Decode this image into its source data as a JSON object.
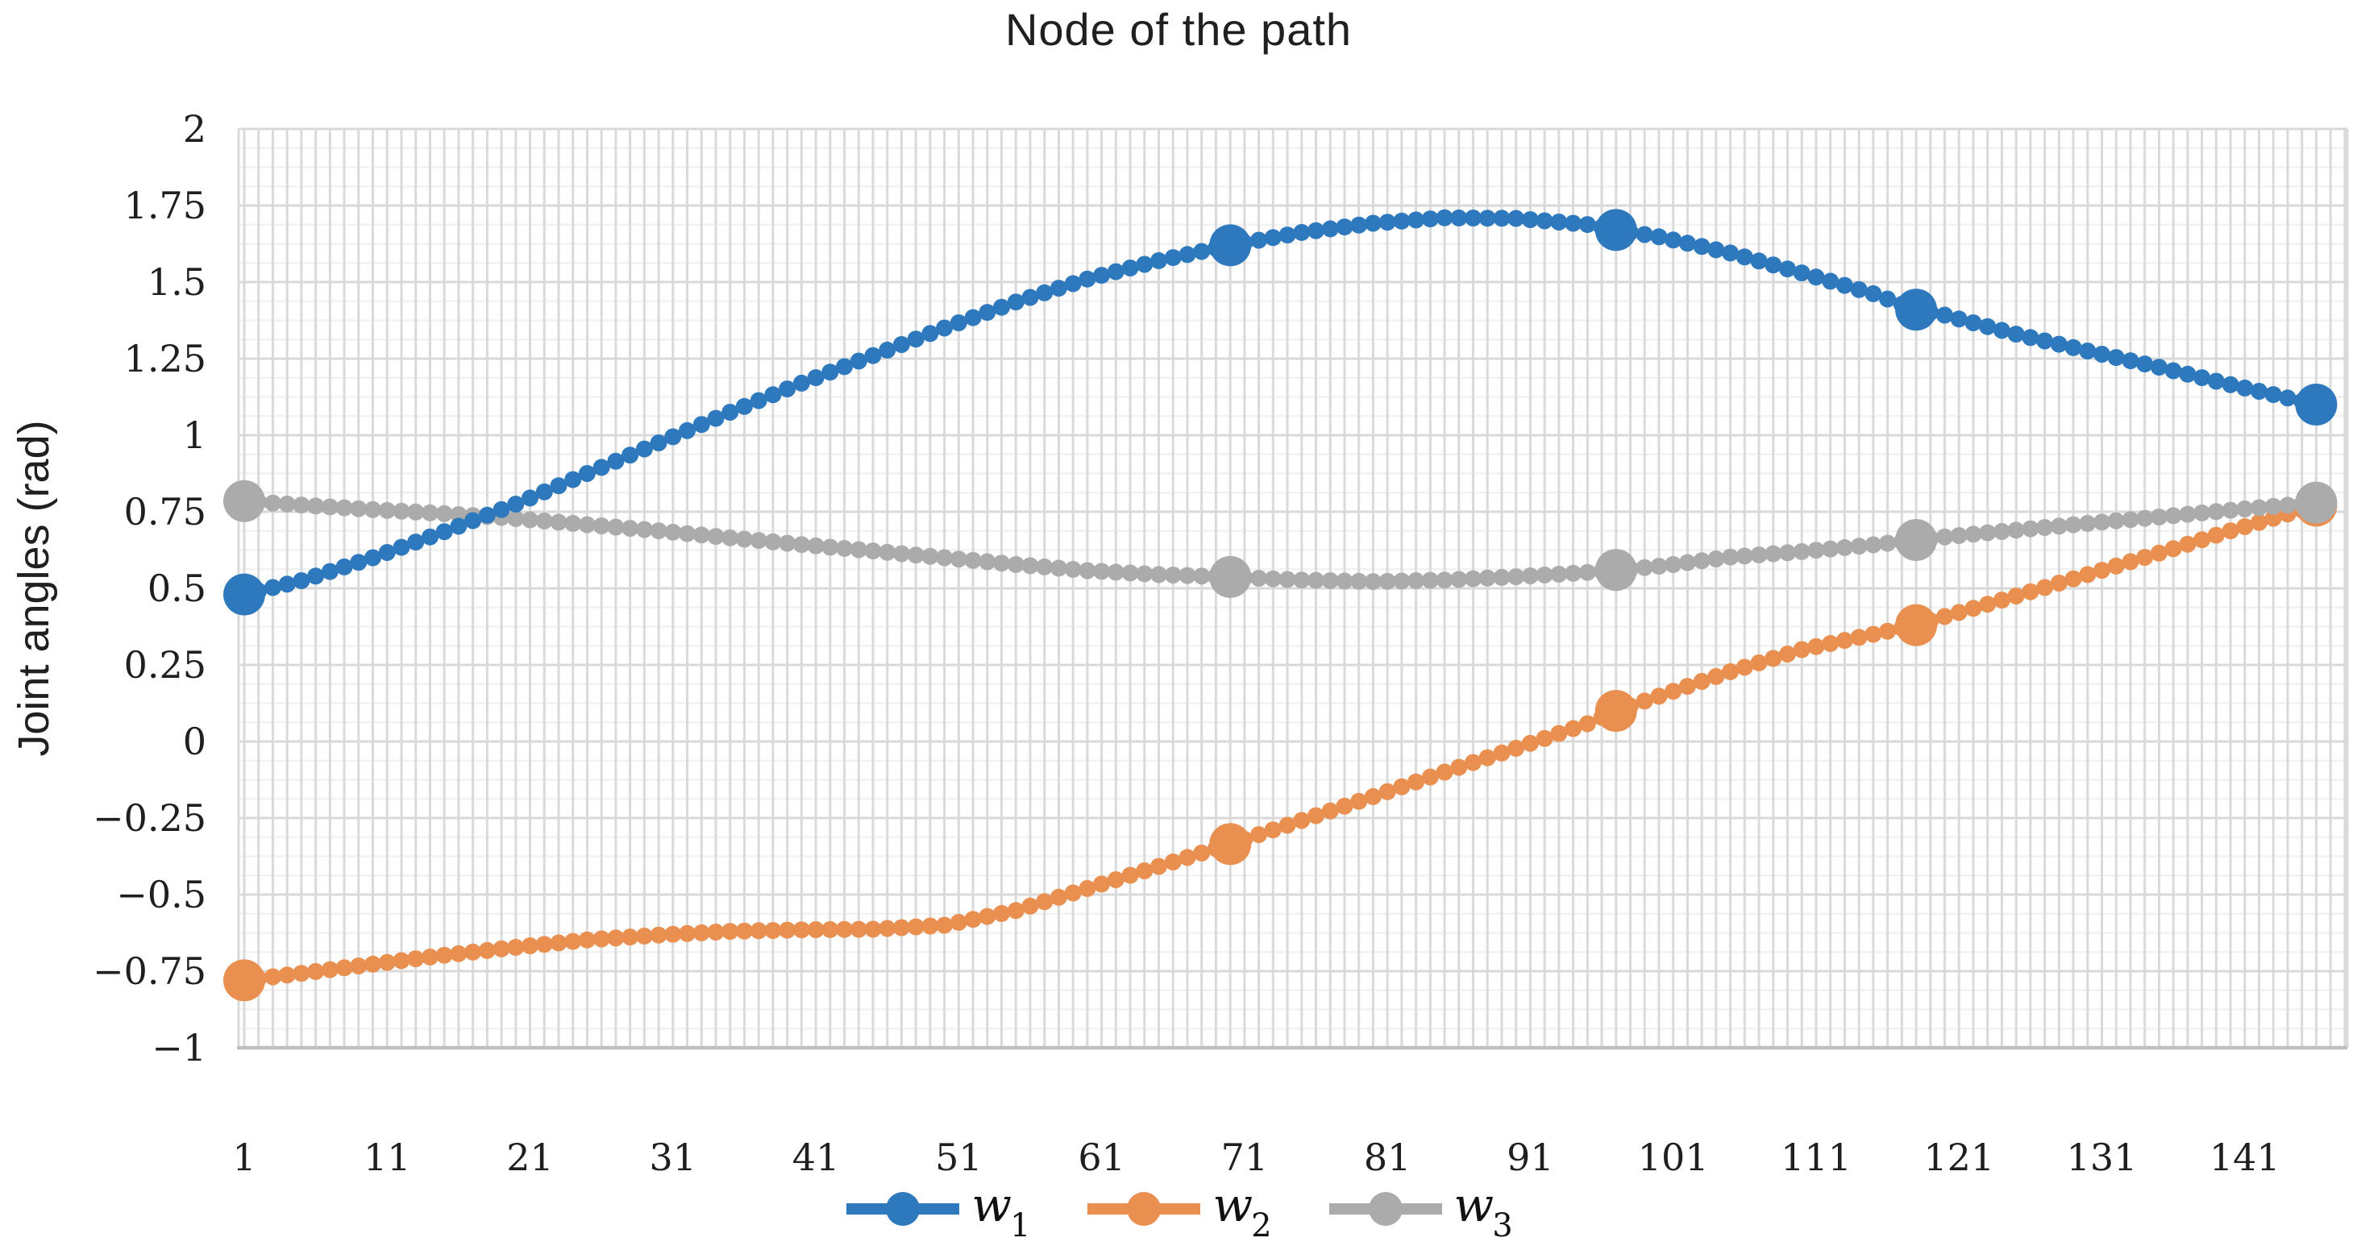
{
  "title": "Node of the path",
  "y_axis": {
    "title": "Joint angles (rad)",
    "tick_labels": [
      "2",
      "1.75",
      "1.5",
      "1.25",
      "1",
      "0.75",
      "0.5",
      "0.25",
      "0",
      "−0.25",
      "−0.5",
      "−0.75",
      "−1"
    ],
    "tick_values": [
      2,
      1.75,
      1.5,
      1.25,
      1,
      0.75,
      0.5,
      0.25,
      0,
      -0.25,
      -0.5,
      -0.75,
      -1
    ]
  },
  "x_axis": {
    "tick_labels": [
      "1",
      "11",
      "21",
      "31",
      "41",
      "51",
      "61",
      "71",
      "81",
      "91",
      "101",
      "111",
      "121",
      "131",
      "141"
    ],
    "tick_values": [
      1,
      11,
      21,
      31,
      41,
      51,
      61,
      71,
      81,
      91,
      101,
      111,
      121,
      131,
      141
    ]
  },
  "legend": {
    "items": [
      {
        "base": "w",
        "sub": "1",
        "color": "#2E79BE"
      },
      {
        "base": "w",
        "sub": "2",
        "color": "#E98F50"
      },
      {
        "base": "w",
        "sub": "3",
        "color": "#ABABAB"
      }
    ]
  },
  "colors": {
    "grid_major": "#d9d9d9",
    "grid_vertical": "#dadada",
    "grid_minor": "#f2f2f2",
    "axis_line": "#c0c0c0",
    "text": "#1f1f1f"
  },
  "chart_data": {
    "type": "line",
    "title": "Node of the path",
    "xlabel": "",
    "ylabel": "Joint angles (rad)",
    "x_ticks": [
      1,
      11,
      21,
      31,
      41,
      51,
      61,
      71,
      81,
      91,
      101,
      111,
      121,
      131,
      141
    ],
    "ylim": [
      -1,
      2
    ],
    "y_major_unit": 0.25,
    "y_minor_unit": 0.0625,
    "x_minor_unit": 1,
    "node_count": 146,
    "grid": "on",
    "legend_position": "bottom",
    "highlight_nodes": [
      1,
      70,
      97,
      118,
      146
    ],
    "series": [
      {
        "name": "w1",
        "legend_base": "w",
        "legend_sub": "1",
        "color": "#2E79BE",
        "highlight_values": [
          0.48,
          1.62,
          1.67,
          1.41,
          1.1
        ],
        "points": [
          [
            1,
            0.48
          ],
          [
            5,
            0.525
          ],
          [
            10,
            0.6
          ],
          [
            15,
            0.685
          ],
          [
            20,
            0.775
          ],
          [
            25,
            0.875
          ],
          [
            30,
            0.975
          ],
          [
            35,
            1.075
          ],
          [
            40,
            1.17
          ],
          [
            45,
            1.26
          ],
          [
            50,
            1.35
          ],
          [
            55,
            1.435
          ],
          [
            60,
            1.51
          ],
          [
            65,
            1.57
          ],
          [
            70,
            1.62
          ],
          [
            75,
            1.662
          ],
          [
            80,
            1.692
          ],
          [
            85,
            1.71
          ],
          [
            90,
            1.708
          ],
          [
            95,
            1.688
          ],
          [
            97,
            1.67
          ],
          [
            100,
            1.648
          ],
          [
            105,
            1.595
          ],
          [
            110,
            1.53
          ],
          [
            115,
            1.462
          ],
          [
            118,
            1.41
          ],
          [
            120,
            1.392
          ],
          [
            125,
            1.33
          ],
          [
            130,
            1.275
          ],
          [
            135,
            1.222
          ],
          [
            140,
            1.165
          ],
          [
            146,
            1.1
          ]
        ]
      },
      {
        "name": "w2",
        "legend_base": "w",
        "legend_sub": "2",
        "color": "#E98F50",
        "highlight_values": [
          -0.78,
          -0.335,
          0.1,
          0.38,
          0.77
        ],
        "points": [
          [
            1,
            -0.78
          ],
          [
            5,
            -0.757
          ],
          [
            10,
            -0.727
          ],
          [
            15,
            -0.698
          ],
          [
            20,
            -0.672
          ],
          [
            25,
            -0.648
          ],
          [
            30,
            -0.632
          ],
          [
            35,
            -0.62
          ],
          [
            40,
            -0.615
          ],
          [
            45,
            -0.613
          ],
          [
            50,
            -0.6
          ],
          [
            55,
            -0.552
          ],
          [
            60,
            -0.48
          ],
          [
            65,
            -0.408
          ],
          [
            70,
            -0.335
          ],
          [
            75,
            -0.258
          ],
          [
            80,
            -0.18
          ],
          [
            85,
            -0.1
          ],
          [
            90,
            -0.022
          ],
          [
            95,
            0.058
          ],
          [
            97,
            0.1
          ],
          [
            100,
            0.148
          ],
          [
            105,
            0.228
          ],
          [
            110,
            0.3
          ],
          [
            115,
            0.35
          ],
          [
            118,
            0.38
          ],
          [
            120,
            0.408
          ],
          [
            125,
            0.475
          ],
          [
            130,
            0.545
          ],
          [
            135,
            0.615
          ],
          [
            140,
            0.688
          ],
          [
            146,
            0.77
          ]
        ]
      },
      {
        "name": "w3",
        "legend_base": "w",
        "legend_sub": "3",
        "color": "#ABABAB",
        "highlight_values": [
          0.785,
          0.537,
          0.56,
          0.658,
          0.78
        ],
        "points": [
          [
            1,
            0.785
          ],
          [
            5,
            0.772
          ],
          [
            10,
            0.757
          ],
          [
            15,
            0.744
          ],
          [
            20,
            0.728
          ],
          [
            25,
            0.708
          ],
          [
            30,
            0.688
          ],
          [
            35,
            0.665
          ],
          [
            40,
            0.643
          ],
          [
            45,
            0.622
          ],
          [
            50,
            0.6
          ],
          [
            55,
            0.578
          ],
          [
            60,
            0.558
          ],
          [
            65,
            0.545
          ],
          [
            70,
            0.537
          ],
          [
            75,
            0.527
          ],
          [
            80,
            0.522
          ],
          [
            85,
            0.527
          ],
          [
            90,
            0.538
          ],
          [
            95,
            0.552
          ],
          [
            97,
            0.56
          ],
          [
            100,
            0.572
          ],
          [
            105,
            0.602
          ],
          [
            110,
            0.62
          ],
          [
            115,
            0.642
          ],
          [
            118,
            0.658
          ],
          [
            120,
            0.668
          ],
          [
            125,
            0.69
          ],
          [
            130,
            0.712
          ],
          [
            135,
            0.733
          ],
          [
            140,
            0.755
          ],
          [
            146,
            0.78
          ]
        ]
      }
    ]
  }
}
